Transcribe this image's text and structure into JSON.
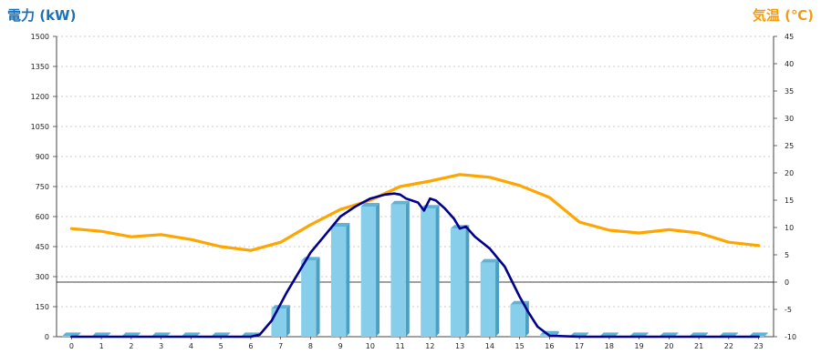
{
  "chart_data": {
    "type": "bar+line",
    "left_title": "電力 (kW)",
    "right_title": "気温 (℃)",
    "colors": {
      "left_title": "#1a73b8",
      "right_title": "#f39c12",
      "bars": "#87ceeb",
      "power_line": "#00008b",
      "temp_line": "#ffa500",
      "grid": "#bbbbbb",
      "zero_line": "#000000"
    },
    "categories": [
      "0",
      "1",
      "2",
      "3",
      "4",
      "5",
      "6",
      "7",
      "8",
      "9",
      "10",
      "11",
      "12",
      "13",
      "14",
      "15",
      "16",
      "17",
      "18",
      "19",
      "20",
      "21",
      "22",
      "23"
    ],
    "y_left": {
      "min": 0,
      "max": 1500,
      "ticks": [
        "0",
        "150",
        "300",
        "450",
        "600",
        "750",
        "900",
        "1050",
        "1200",
        "1350",
        "1500"
      ]
    },
    "y_right": {
      "min": -10,
      "max": 45,
      "ticks": [
        "-10",
        "-5",
        "0",
        "5",
        "10",
        "15",
        "20",
        "25",
        "30",
        "35",
        "40",
        "45"
      ]
    },
    "hourly_power_bars": [
      3,
      3,
      3,
      3,
      3,
      3,
      3,
      140,
      380,
      550,
      650,
      660,
      640,
      540,
      370,
      160,
      10,
      3,
      3,
      3,
      3,
      3,
      3,
      3
    ],
    "power_line": {
      "x": [
        0,
        1,
        2,
        3,
        4,
        5,
        6,
        6.3,
        6.7,
        7.2,
        7.6,
        8,
        8.5,
        9,
        9.5,
        10,
        10.5,
        10.8,
        11,
        11.2,
        11.4,
        11.6,
        11.8,
        12,
        12.2,
        12.5,
        12.8,
        13,
        13.2,
        13.5,
        14,
        14.5,
        15,
        15.3,
        15.6,
        16,
        17,
        18,
        19,
        20,
        21,
        22,
        23
      ],
      "y": [
        0,
        0,
        0,
        0,
        0,
        0,
        0,
        10,
        80,
        220,
        320,
        420,
        510,
        600,
        650,
        690,
        710,
        715,
        710,
        690,
        680,
        670,
        630,
        690,
        680,
        640,
        590,
        540,
        550,
        500,
        440,
        350,
        200,
        120,
        50,
        5,
        0,
        0,
        0,
        0,
        0,
        0,
        0
      ]
    },
    "temp_line": {
      "x": [
        0,
        1,
        2,
        3,
        4,
        5,
        6,
        7,
        8,
        9,
        10,
        11,
        12,
        13,
        14,
        15,
        16,
        17,
        18,
        19,
        20,
        21,
        22,
        23
      ],
      "y": [
        9.8,
        9.3,
        8.3,
        8.7,
        7.8,
        6.5,
        5.8,
        7.3,
        10.5,
        13.3,
        15,
        17.5,
        18.5,
        19.7,
        19.2,
        17.7,
        15.5,
        11,
        9.5,
        9,
        9.6,
        9,
        7.3,
        6.7
      ]
    },
    "grid": "horizontal-dashed"
  }
}
